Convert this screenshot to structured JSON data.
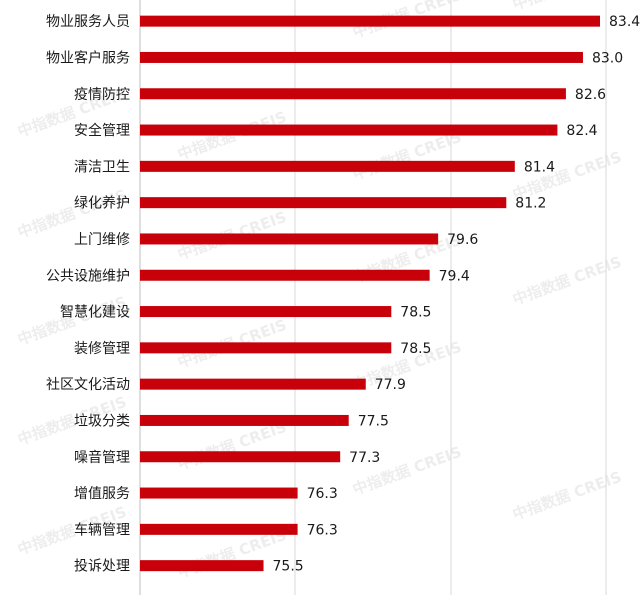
{
  "chart_data": {
    "type": "bar",
    "orientation": "horizontal",
    "categories": [
      "物业服务人员",
      "物业客户服务",
      "疫情防控",
      "安全管理",
      "清洁卫生",
      "绿化养护",
      "上门维修",
      "公共设施维护",
      "智慧化建设",
      "装修管理",
      "社区文化活动",
      "垃圾分类",
      "噪音管理",
      "增值服务",
      "车辆管理",
      "投诉处理"
    ],
    "values": [
      83.4,
      83.0,
      82.6,
      82.4,
      81.4,
      81.2,
      79.6,
      79.4,
      78.5,
      78.5,
      77.9,
      77.5,
      77.3,
      76.3,
      76.3,
      75.5
    ],
    "value_labels": [
      "83.4",
      "83.0",
      "82.6",
      "82.4",
      "81.4",
      "81.2",
      "79.6",
      "79.4",
      "78.5",
      "78.5",
      "77.9",
      "77.5",
      "77.3",
      "76.3",
      "76.3",
      "75.5"
    ],
    "xlim": [
      72.6,
      83.4
    ],
    "bar_color": "#c8000a",
    "grid": true,
    "gridline_color": "#d9d9d9",
    "title": "",
    "xlabel": "",
    "ylabel": "",
    "watermark": "中指数据 CREIS"
  }
}
